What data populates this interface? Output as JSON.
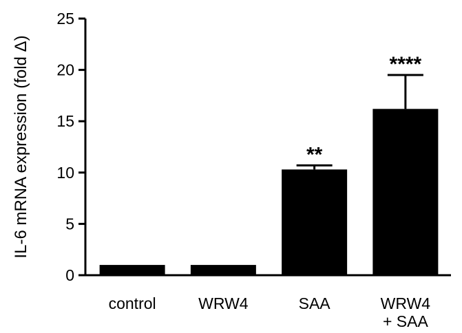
{
  "chart_data": {
    "type": "bar",
    "title": "",
    "xlabel": "",
    "ylabel": "IL-6 mRNA expression (fold Δ)",
    "ylim": [
      0,
      25
    ],
    "yticks": [
      0,
      5,
      10,
      15,
      20,
      25
    ],
    "grid": false,
    "categories": [
      {
        "lines": [
          "control"
        ]
      },
      {
        "lines": [
          "WRW4"
        ]
      },
      {
        "lines": [
          "SAA"
        ]
      },
      {
        "lines": [
          "WRW4",
          "+ SAA"
        ]
      }
    ],
    "values": [
      1.0,
      1.0,
      10.3,
      16.2
    ],
    "errors": [
      0.0,
      0.0,
      0.4,
      3.3
    ],
    "significance": [
      "",
      "",
      "**",
      "****"
    ],
    "bar_color": "#000000"
  }
}
